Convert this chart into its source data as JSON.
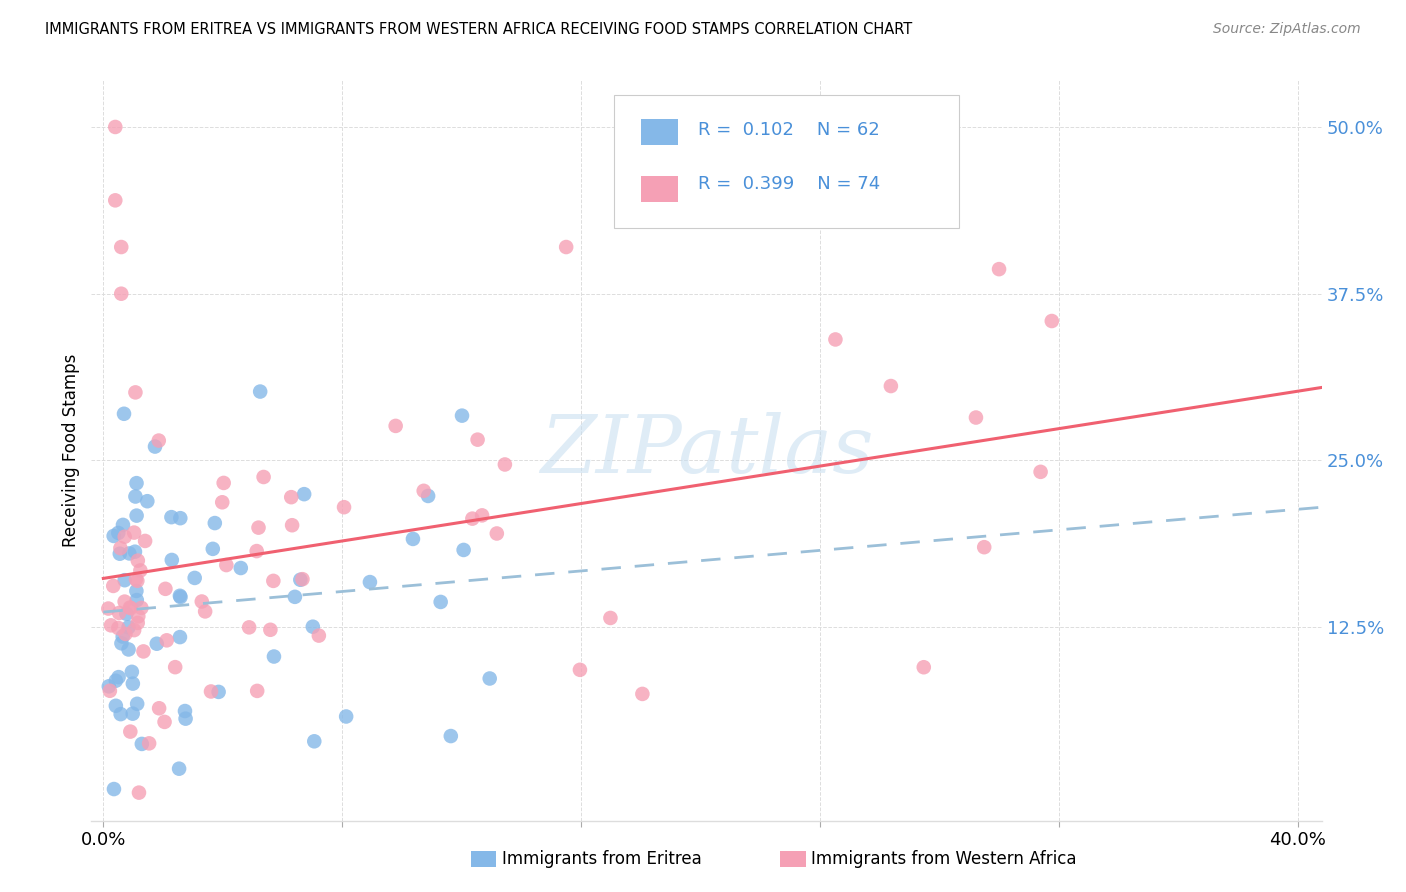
{
  "title": "IMMIGRANTS FROM ERITREA VS IMMIGRANTS FROM WESTERN AFRICA RECEIVING FOOD STAMPS CORRELATION CHART",
  "source": "Source: ZipAtlas.com",
  "ylabel": "Receiving Food Stamps",
  "ytick_labels": [
    "12.5%",
    "25.0%",
    "37.5%",
    "50.0%"
  ],
  "ytick_values": [
    0.125,
    0.25,
    0.375,
    0.5
  ],
  "xtick_values": [
    0.0,
    0.08,
    0.16,
    0.24,
    0.32,
    0.4
  ],
  "xlim": [
    -0.004,
    0.408
  ],
  "ylim": [
    -0.02,
    0.535
  ],
  "watermark": "ZIPatlas",
  "legend_r1": "0.102",
  "legend_n1": "62",
  "legend_r2": "0.399",
  "legend_n2": "74",
  "color_eritrea": "#85b8e8",
  "color_w_africa": "#f5a0b5",
  "color_eritrea_line": "#9bbfd8",
  "color_w_africa_line": "#f06070",
  "color_blue_text": "#4a90d9",
  "color_grid": "#dddddd",
  "color_source": "#888888"
}
